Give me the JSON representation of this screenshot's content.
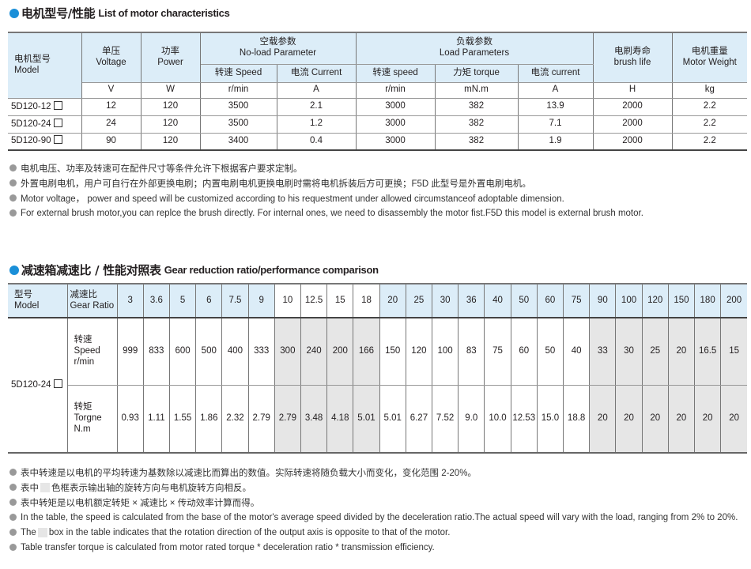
{
  "section1": {
    "title_cn": "电机型号/性能",
    "title_en": "List of motor characteristics",
    "headers": {
      "model": [
        "电机型号",
        "Model"
      ],
      "voltage": [
        "单压",
        "Voltage"
      ],
      "power": [
        "功率",
        "Power"
      ],
      "noload": [
        "空载参数",
        "No-load Parameter"
      ],
      "load": [
        "负载参数",
        "Load Parameters"
      ],
      "life": [
        "电刷寿命",
        "brush life"
      ],
      "weight": [
        "电机重量",
        "Motor Weight"
      ],
      "sub": [
        "转速 Speed",
        "电流 Current",
        "转速 speed",
        "力矩 torque",
        "电流 current"
      ],
      "units": [
        "V",
        "W",
        "r/min",
        "A",
        "r/min",
        "mN.m",
        "A",
        "H",
        "kg"
      ]
    },
    "rows": [
      [
        "5D120-12",
        "12",
        "120",
        "3500",
        "2.1",
        "3000",
        "382",
        "13.9",
        "2000",
        "2.2"
      ],
      [
        "5D120-24",
        "24",
        "120",
        "3500",
        "1.2",
        "3000",
        "382",
        "7.1",
        "2000",
        "2.2"
      ],
      [
        "5D120-90",
        "90",
        "120",
        "3400",
        "0.4",
        "3000",
        "382",
        "1.9",
        "2000",
        "2.2"
      ]
    ],
    "notes": [
      "电机电压、功率及转速可在配件尺寸等条件允许下根据客户要求定制。",
      "外置电刷电机，用户可自行在外部更换电刷；内置电刷电机更换电刷时需将电机拆装后方可更换；F5D 此型号是外置电刷电机。",
      "Motor voltage， power and speed will be customized according to his requestment under allowed circumstanceof adoptable dimension.",
      "For external brush motor,you can replce the brush directly. For internal ones, we need to disassembly the motor fist.F5D this model is external brush motor."
    ]
  },
  "section2": {
    "title_cn": "减速箱减速比 / 性能对照表",
    "title_en": "Gear reduction ratio/performance comparison",
    "model_header": [
      "型号",
      "Model"
    ],
    "ratio_header": [
      "减速比",
      "Gear Ratio"
    ],
    "model": "5D120-24",
    "speed_label": [
      "转速",
      "Speed",
      "r/min"
    ],
    "torque_label": [
      "转矩",
      "Torgne",
      "N.m"
    ],
    "ratios": [
      "3",
      "3.6",
      "5",
      "6",
      "7.5",
      "9",
      "10",
      "12.5",
      "15",
      "18",
      "20",
      "25",
      "30",
      "36",
      "40",
      "50",
      "60",
      "75",
      "90",
      "100",
      "120",
      "150",
      "180",
      "200"
    ],
    "speed": [
      "999",
      "833",
      "600",
      "500",
      "400",
      "333",
      "300",
      "240",
      "200",
      "166",
      "150",
      "120",
      "100",
      "83",
      "75",
      "60",
      "50",
      "40",
      "33",
      "30",
      "25",
      "20",
      "16.5",
      "15"
    ],
    "torque": [
      "0.93",
      "1.11",
      "1.55",
      "1.86",
      "2.32",
      "2.79",
      "2.79",
      "3.48",
      "4.18",
      "5.01",
      "5.01",
      "6.27",
      "7.52",
      "9.0",
      "10.0",
      "12.53",
      "15.0",
      "18.8",
      "20",
      "20",
      "20",
      "20",
      "20",
      "20"
    ],
    "shaded": [
      false,
      false,
      false,
      false,
      false,
      false,
      true,
      true,
      true,
      true,
      false,
      false,
      false,
      false,
      false,
      false,
      false,
      false,
      true,
      true,
      true,
      true,
      true,
      true
    ],
    "notes_cn": [
      "表中转速是以电机的平均转速为基数除以减速比而算出的数值。实际转速将随负载大小而变化，变化范围 2-20%。",
      [
        "表中",
        "色框表示输出轴的旋转方向与电机旋转方向相反。"
      ],
      "表中转矩是以电机额定转矩 × 减速比 × 传动效率计算而得。"
    ],
    "notes_en": [
      "In the table, the speed is calculated from the base of the motor's average speed  divided by the deceleration ratio.The actual speed will vary with the load, ranging from 2% to 20%.",
      [
        "The",
        "box in the table indicates that the rotation direction of the output axis is opposite to that of the motor."
      ],
      "Table transfer torque is calculated from motor rated torque * deceleration ratio * transmission efficiency."
    ]
  },
  "colors": {
    "accent": "#1a8fd8",
    "header_bg": "#dcedf8",
    "shade": "#e6e6e6"
  }
}
